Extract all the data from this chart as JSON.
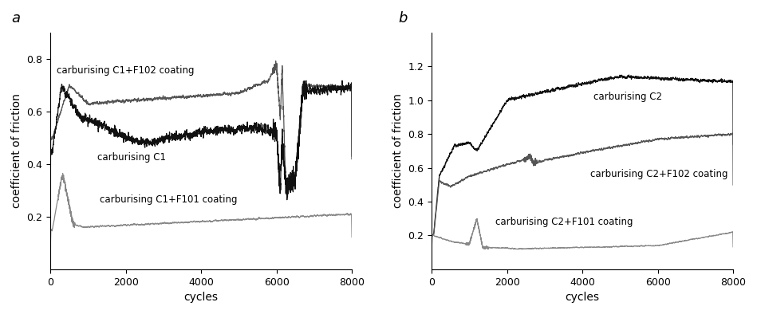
{
  "panel_a_title": "a",
  "panel_b_title": "b",
  "xlabel": "cycles",
  "ylabel": "coefficient of friction",
  "xlim": [
    0,
    8000
  ],
  "xticks": [
    0,
    2000,
    4000,
    6000,
    8000
  ],
  "panel_a": {
    "ylim": [
      0.0,
      0.9
    ],
    "yticks": [
      0.2,
      0.4,
      0.6,
      0.8
    ],
    "C1_F102_color": "#555555",
    "C1_color": "#111111",
    "C1_F101_color": "#888888",
    "C1_F102_label": "carburising C1+F102 coating",
    "C1_label": "carburising C1",
    "C1_F101_label": "carburising C1+F101 coating"
  },
  "panel_b": {
    "ylim": [
      0.0,
      1.4
    ],
    "yticks": [
      0.2,
      0.4,
      0.6,
      0.8,
      1.0,
      1.2
    ],
    "C2_color": "#111111",
    "C2_F102_color": "#555555",
    "C2_F101_color": "#888888",
    "C2_label": "carburising C2",
    "C2_F102_label": "carburising C2+F102 coating",
    "C2_F101_label": "carburising C2+F101 coating"
  },
  "line_width": 0.9,
  "font_size_label": 10,
  "font_size_annot": 8.5,
  "background_color": "#ffffff"
}
